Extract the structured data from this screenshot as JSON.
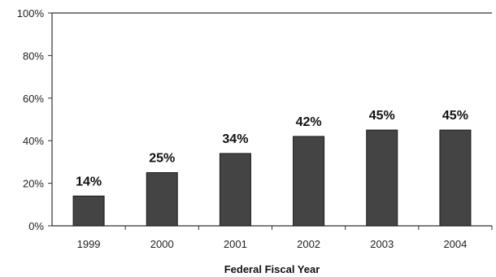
{
  "chart_data": {
    "type": "bar",
    "categories": [
      "1999",
      "2000",
      "2001",
      "2002",
      "2003",
      "2004"
    ],
    "values": [
      14,
      25,
      34,
      42,
      45,
      45
    ],
    "data_labels": [
      "14%",
      "25%",
      "34%",
      "42%",
      "45%",
      "45%"
    ],
    "xlabel": "Federal Fiscal Year",
    "ylabel": "",
    "ylim": [
      0,
      100
    ],
    "yticks": [
      0,
      20,
      40,
      60,
      80,
      100
    ],
    "ytick_labels": [
      "0%",
      "20%",
      "40%",
      "60%",
      "80%",
      "100%"
    ],
    "grid": false,
    "legend": "none",
    "colors": {
      "bar": "#444444",
      "bar_edge": "#1a1a1a",
      "axis": "#333333"
    }
  }
}
